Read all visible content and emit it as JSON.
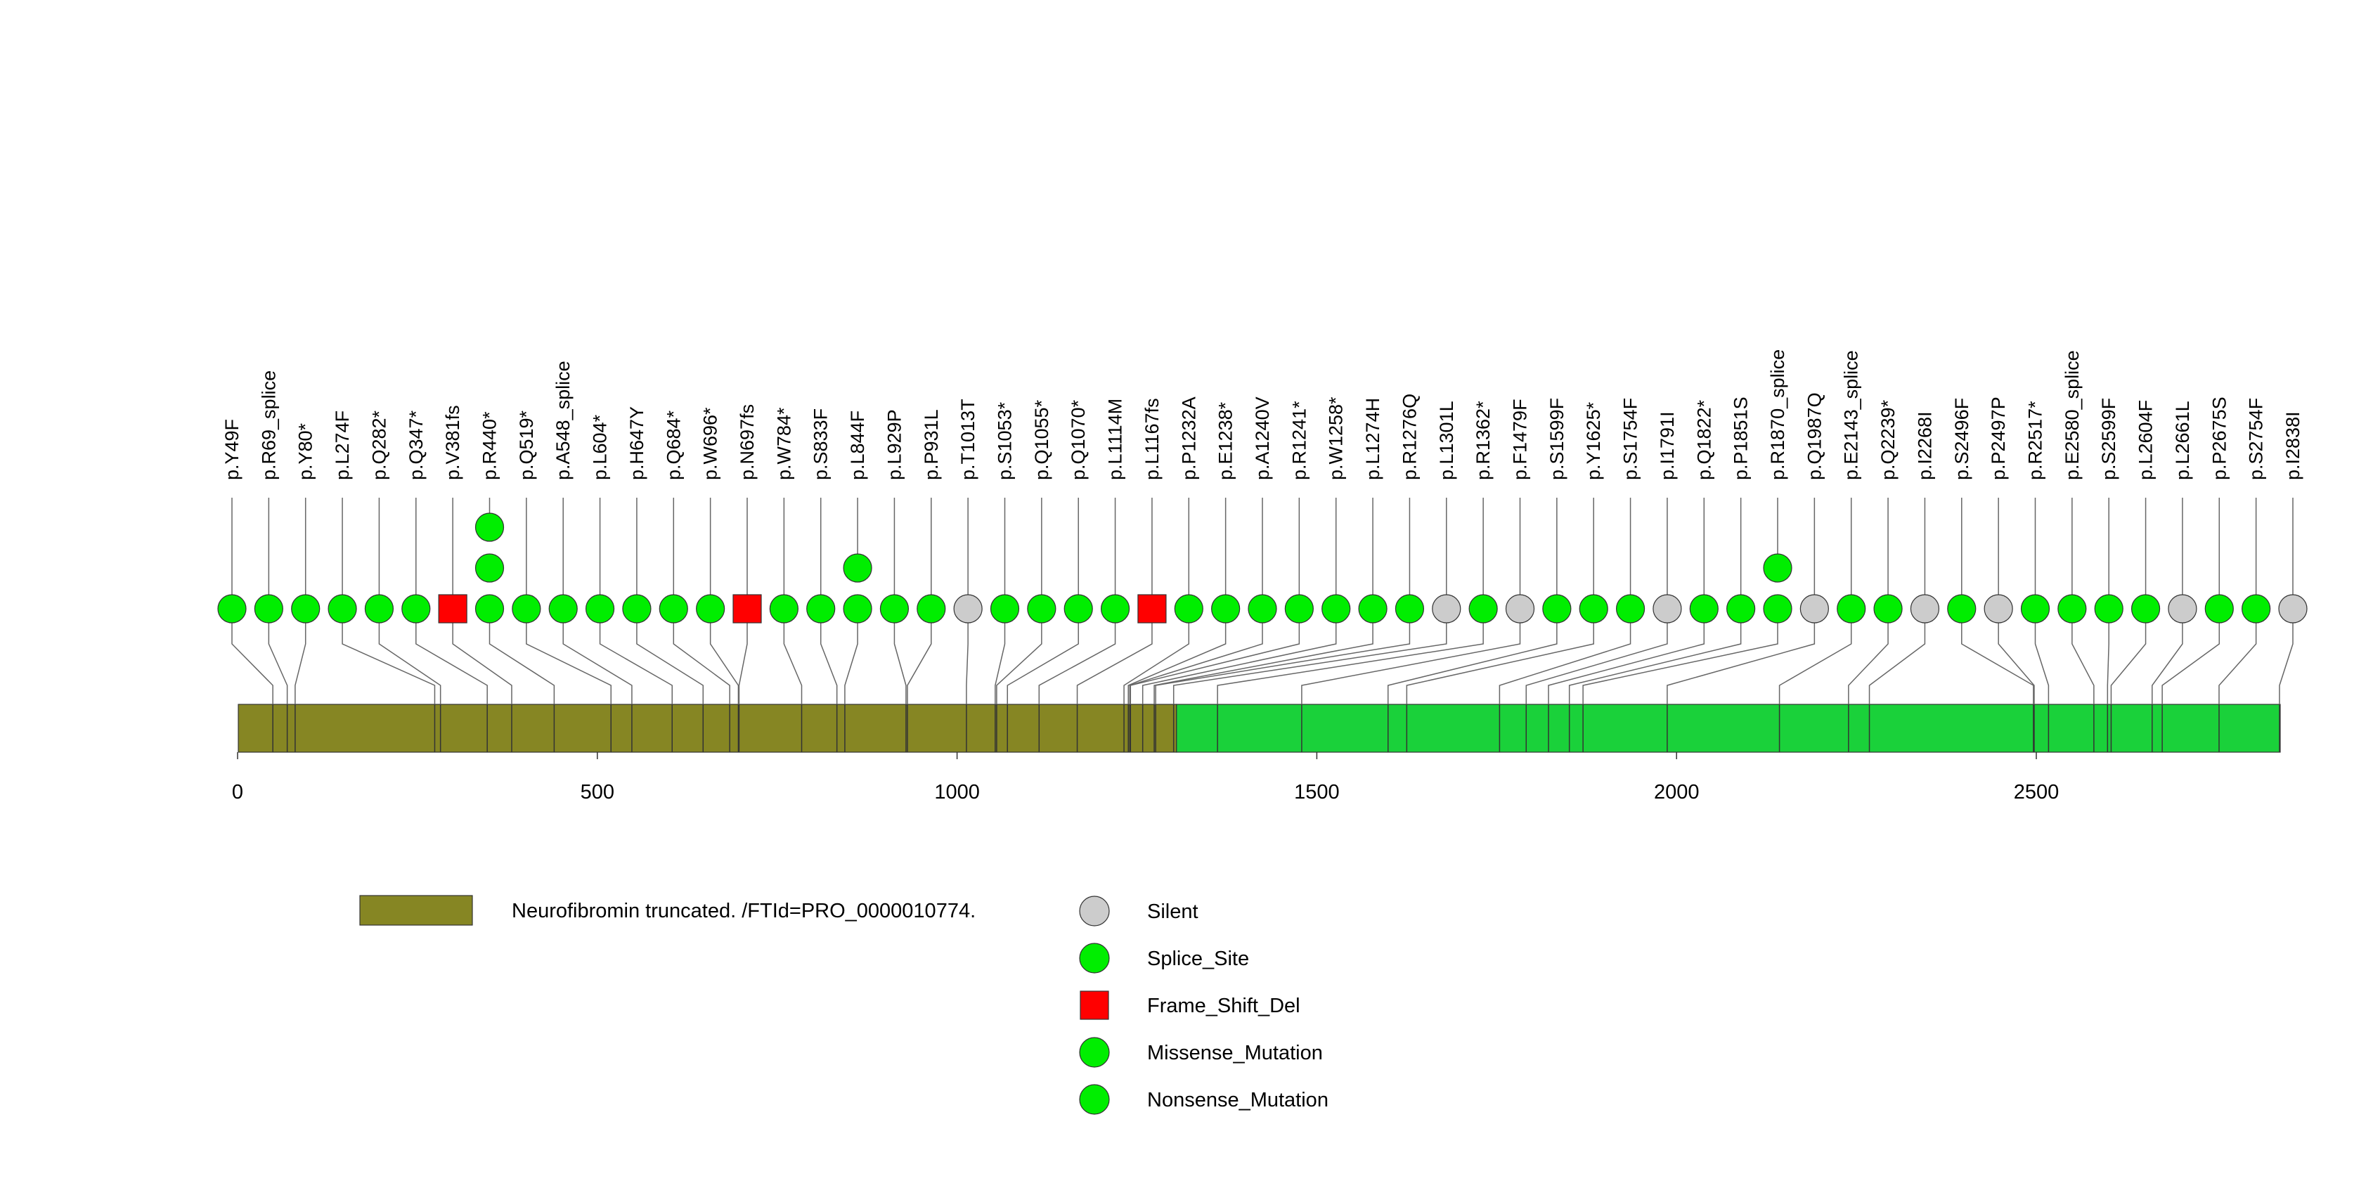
{
  "chart_data": {
    "type": "lollipop",
    "protein_length": 2839,
    "x_axis": {
      "range": [
        0,
        2839
      ],
      "ticks": [
        0,
        500,
        1000,
        1500,
        2000,
        2500
      ]
    },
    "colors": {
      "Silent": "#cccccc",
      "Splice_Site": "#00ee00",
      "Frame_Shift_Del": "#ff0000",
      "Missense_Mutation": "#00ee00",
      "Nonsense_Mutation": "#00ee00",
      "domain_truncated": "#868623",
      "domain_full": "#1ad13a"
    },
    "domains": [
      {
        "name": "Neurofibromin truncated. /FTId=PRO_0000010774.",
        "start": 1,
        "end": 1305,
        "color_key": "domain_truncated",
        "in_legend": true
      },
      {
        "name": "",
        "start": 1305,
        "end": 2839,
        "color_key": "domain_full",
        "in_legend": false
      }
    ],
    "mutations": [
      {
        "label": "p.Y49F",
        "pos": 49,
        "count": 1,
        "type": "Missense_Mutation"
      },
      {
        "label": "p.R69_splice",
        "pos": 69,
        "count": 1,
        "type": "Splice_Site"
      },
      {
        "label": "p.Y80*",
        "pos": 80,
        "count": 1,
        "type": "Nonsense_Mutation"
      },
      {
        "label": "p.L274F",
        "pos": 274,
        "count": 1,
        "type": "Missense_Mutation"
      },
      {
        "label": "p.Q282*",
        "pos": 282,
        "count": 1,
        "type": "Nonsense_Mutation"
      },
      {
        "label": "p.Q347*",
        "pos": 347,
        "count": 1,
        "type": "Nonsense_Mutation"
      },
      {
        "label": "p.V381fs",
        "pos": 381,
        "count": 1,
        "type": "Frame_Shift_Del"
      },
      {
        "label": "p.R440*",
        "pos": 440,
        "count": 3,
        "type": "Nonsense_Mutation"
      },
      {
        "label": "p.Q519*",
        "pos": 519,
        "count": 1,
        "type": "Nonsense_Mutation"
      },
      {
        "label": "p.A548_splice",
        "pos": 548,
        "count": 1,
        "type": "Splice_Site"
      },
      {
        "label": "p.L604*",
        "pos": 604,
        "count": 1,
        "type": "Nonsense_Mutation"
      },
      {
        "label": "p.H647Y",
        "pos": 647,
        "count": 1,
        "type": "Missense_Mutation"
      },
      {
        "label": "p.Q684*",
        "pos": 684,
        "count": 1,
        "type": "Nonsense_Mutation"
      },
      {
        "label": "p.W696*",
        "pos": 696,
        "count": 1,
        "type": "Nonsense_Mutation"
      },
      {
        "label": "p.N697fs",
        "pos": 697,
        "count": 1,
        "type": "Frame_Shift_Del"
      },
      {
        "label": "p.W784*",
        "pos": 784,
        "count": 1,
        "type": "Nonsense_Mutation"
      },
      {
        "label": "p.S833F",
        "pos": 833,
        "count": 1,
        "type": "Missense_Mutation"
      },
      {
        "label": "p.L844F",
        "pos": 844,
        "count": 2,
        "type": "Missense_Mutation"
      },
      {
        "label": "p.L929P",
        "pos": 929,
        "count": 1,
        "type": "Missense_Mutation"
      },
      {
        "label": "p.P931L",
        "pos": 931,
        "count": 1,
        "type": "Missense_Mutation"
      },
      {
        "label": "p.T1013T",
        "pos": 1013,
        "count": 1,
        "type": "Silent"
      },
      {
        "label": "p.S1053*",
        "pos": 1053,
        "count": 1,
        "type": "Nonsense_Mutation"
      },
      {
        "label": "p.Q1055*",
        "pos": 1055,
        "count": 1,
        "type": "Nonsense_Mutation"
      },
      {
        "label": "p.Q1070*",
        "pos": 1070,
        "count": 1,
        "type": "Nonsense_Mutation"
      },
      {
        "label": "p.L1114M",
        "pos": 1114,
        "count": 1,
        "type": "Missense_Mutation"
      },
      {
        "label": "p.L1167fs",
        "pos": 1167,
        "count": 1,
        "type": "Frame_Shift_Del"
      },
      {
        "label": "p.P1232A",
        "pos": 1232,
        "count": 1,
        "type": "Missense_Mutation"
      },
      {
        "label": "p.E1238*",
        "pos": 1238,
        "count": 1,
        "type": "Nonsense_Mutation"
      },
      {
        "label": "p.A1240V",
        "pos": 1240,
        "count": 1,
        "type": "Missense_Mutation"
      },
      {
        "label": "p.R1241*",
        "pos": 1241,
        "count": 1,
        "type": "Nonsense_Mutation"
      },
      {
        "label": "p.W1258*",
        "pos": 1258,
        "count": 1,
        "type": "Nonsense_Mutation"
      },
      {
        "label": "p.L1274H",
        "pos": 1274,
        "count": 1,
        "type": "Missense_Mutation"
      },
      {
        "label": "p.R1276Q",
        "pos": 1276,
        "count": 1,
        "type": "Missense_Mutation"
      },
      {
        "label": "p.L1301L",
        "pos": 1301,
        "count": 1,
        "type": "Silent"
      },
      {
        "label": "p.R1362*",
        "pos": 1362,
        "count": 1,
        "type": "Nonsense_Mutation"
      },
      {
        "label": "p.F1479F",
        "pos": 1479,
        "count": 1,
        "type": "Silent"
      },
      {
        "label": "p.S1599F",
        "pos": 1599,
        "count": 1,
        "type": "Missense_Mutation"
      },
      {
        "label": "p.Y1625*",
        "pos": 1625,
        "count": 1,
        "type": "Nonsense_Mutation"
      },
      {
        "label": "p.S1754F",
        "pos": 1754,
        "count": 1,
        "type": "Missense_Mutation"
      },
      {
        "label": "p.I1791I",
        "pos": 1791,
        "count": 1,
        "type": "Silent"
      },
      {
        "label": "p.Q1822*",
        "pos": 1822,
        "count": 1,
        "type": "Nonsense_Mutation"
      },
      {
        "label": "p.P1851S",
        "pos": 1851,
        "count": 1,
        "type": "Missense_Mutation"
      },
      {
        "label": "p.R1870_splice",
        "pos": 1870,
        "count": 2,
        "type": "Splice_Site"
      },
      {
        "label": "p.Q1987Q",
        "pos": 1987,
        "count": 1,
        "type": "Silent"
      },
      {
        "label": "p.E2143_splice",
        "pos": 2143,
        "count": 1,
        "type": "Splice_Site"
      },
      {
        "label": "p.Q2239*",
        "pos": 2239,
        "count": 1,
        "type": "Nonsense_Mutation"
      },
      {
        "label": "p.I2268I",
        "pos": 2268,
        "count": 1,
        "type": "Silent"
      },
      {
        "label": "p.S2496F",
        "pos": 2496,
        "count": 1,
        "type": "Missense_Mutation"
      },
      {
        "label": "p.P2497P",
        "pos": 2497,
        "count": 1,
        "type": "Silent"
      },
      {
        "label": "p.R2517*",
        "pos": 2517,
        "count": 1,
        "type": "Nonsense_Mutation"
      },
      {
        "label": "p.E2580_splice",
        "pos": 2580,
        "count": 1,
        "type": "Splice_Site"
      },
      {
        "label": "p.S2599F",
        "pos": 2599,
        "count": 1,
        "type": "Missense_Mutation"
      },
      {
        "label": "p.L2604F",
        "pos": 2604,
        "count": 1,
        "type": "Missense_Mutation"
      },
      {
        "label": "p.L2661L",
        "pos": 2661,
        "count": 1,
        "type": "Silent"
      },
      {
        "label": "p.P2675S",
        "pos": 2675,
        "count": 1,
        "type": "Missense_Mutation"
      },
      {
        "label": "p.S2754F",
        "pos": 2754,
        "count": 1,
        "type": "Missense_Mutation"
      },
      {
        "label": "p.I2838I",
        "pos": 2838,
        "count": 1,
        "type": "Silent"
      }
    ],
    "legend": {
      "mutation_types": [
        {
          "label": "Silent",
          "shape": "circle",
          "color_key": "Silent"
        },
        {
          "label": "Splice_Site",
          "shape": "circle",
          "color_key": "Splice_Site"
        },
        {
          "label": "Frame_Shift_Del",
          "shape": "square",
          "color_key": "Frame_Shift_Del"
        },
        {
          "label": "Missense_Mutation",
          "shape": "circle",
          "color_key": "Missense_Mutation"
        },
        {
          "label": "Nonsense_Mutation",
          "shape": "circle",
          "color_key": "Nonsense_Mutation"
        }
      ]
    }
  }
}
